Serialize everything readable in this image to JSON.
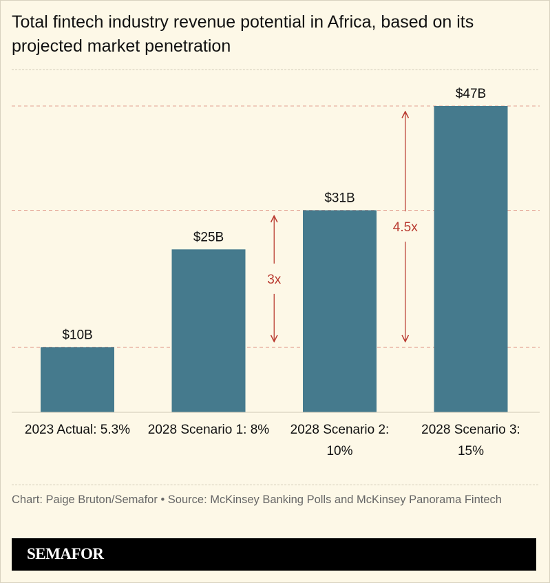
{
  "chart_data": {
    "type": "bar",
    "title": "Total fintech industry revenue potential in Africa, based on its projected market penetration",
    "categories": [
      "2023 Actual: 5.3%",
      "2028 Scenario 1: 8%",
      "2028 Scenario 2: 10%",
      "2028 Scenario 3: 15%"
    ],
    "values": [
      10,
      25,
      31,
      47
    ],
    "value_labels": [
      "$10B",
      "$25B",
      "$31B",
      "$47B"
    ],
    "color": "#457a8d",
    "reference_lines": [
      10,
      31,
      47
    ],
    "annotations": [
      {
        "text": "3x",
        "from": 10,
        "to": 31
      },
      {
        "text": "4.5x",
        "from": 10,
        "to": 47
      }
    ],
    "source": "Chart: Paige Bruton/Semafor • Source: McKinsey Banking Polls and McKinsey Panorama Fintech",
    "brand": "SEMAFOR"
  }
}
